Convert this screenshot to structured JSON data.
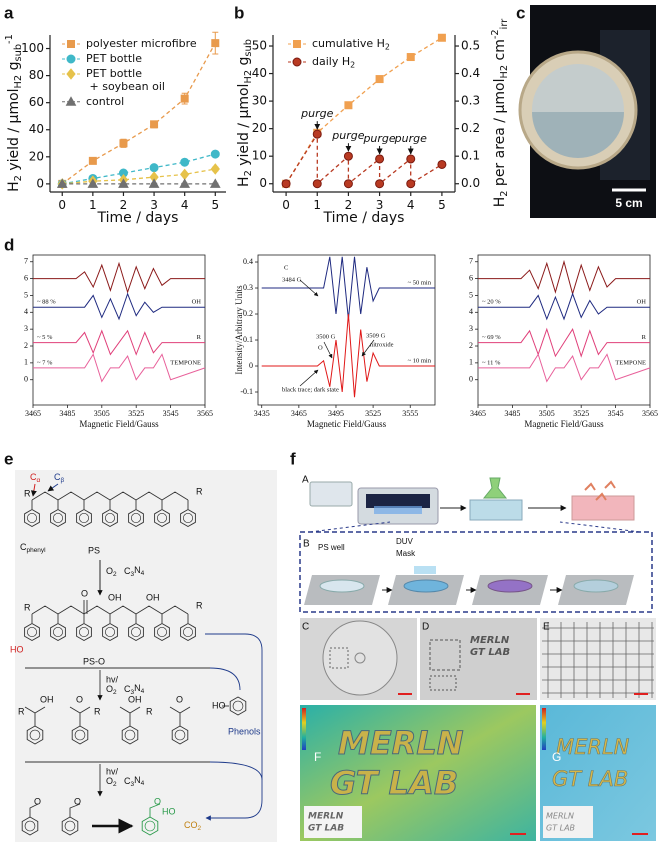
{
  "panel_labels": [
    "a",
    "b",
    "c",
    "d",
    "e",
    "f"
  ],
  "chart_data": [
    {
      "type": "line",
      "y_label": [
        "H",
        "2",
        " yield / μmol",
        "H2",
        " g",
        "sub",
        "-1"
      ],
      "x_label": "Time / days",
      "x": [
        0,
        1,
        2,
        3,
        4,
        5
      ],
      "xlim": [
        -0.4,
        5.35
      ],
      "ylim": [
        -6,
        110
      ],
      "xticks": [
        0,
        1,
        2,
        3,
        4,
        5
      ],
      "yticks": [
        0,
        20,
        40,
        60,
        80,
        100
      ],
      "legend": "upper left",
      "series": [
        {
          "name": "polyester microfibre",
          "color": "#e89a4c",
          "marker": "square",
          "line_style": "dashed",
          "values": [
            0,
            17,
            30,
            44,
            63,
            104
          ],
          "errors": [
            0,
            2,
            3,
            2.5,
            4,
            8
          ]
        },
        {
          "name": "PET bottle",
          "color": "#3fb8c8",
          "marker": "circle",
          "line_style": "dashed",
          "values": [
            0,
            4,
            8,
            12,
            16,
            22
          ],
          "errors": [
            0,
            1,
            1,
            1,
            1.5,
            1.5
          ]
        },
        {
          "name": "PET bottle + soybean oil",
          "color": "#e6c24a",
          "marker": "diamond",
          "line_style": "dashed",
          "values": [
            0,
            2,
            3,
            5,
            7,
            11
          ],
          "errors": [
            0,
            0.5,
            1,
            1,
            1,
            1.5
          ]
        },
        {
          "name": "control",
          "color": "#707070",
          "marker": "triangle",
          "line_style": "dashed",
          "values": [
            0,
            0,
            0,
            0,
            0,
            0
          ],
          "errors": [
            0,
            0.5,
            0.5,
            0.5,
            0.5,
            0.5
          ]
        }
      ]
    },
    {
      "type": "line",
      "y_label": [
        "H",
        "2",
        " yield / μmol",
        "H2",
        " g",
        "sub"
      ],
      "y2_label": [
        "H",
        "2",
        " per area / μmol",
        "H2",
        " cm",
        "-2",
        "irr"
      ],
      "x_label": "Time / days",
      "xlim": [
        -0.42,
        5.42
      ],
      "ylim": [
        -3,
        54
      ],
      "y2lim": [
        -0.03,
        0.54
      ],
      "xticks": [
        0,
        1,
        2,
        3,
        4,
        5
      ],
      "yticks": [
        0,
        10,
        20,
        30,
        40,
        50
      ],
      "y2ticks": [
        {
          "value": 0,
          "label": "0.0"
        },
        0.1,
        0.2,
        0.3,
        0.4,
        0.5
      ],
      "legend": "upper left",
      "annotations": [
        "purge",
        "purge",
        "purge",
        "purge"
      ],
      "series": [
        {
          "name": "cumulative H2",
          "color": "#f0a050",
          "marker": "square",
          "line_style": "dashed",
          "x": [
            0,
            1,
            2,
            3,
            4,
            5
          ],
          "values": [
            0,
            18.5,
            28.5,
            38,
            46,
            53
          ]
        },
        {
          "name": "daily H2",
          "color": "#b83a22",
          "marker": "circle",
          "line_style": "dashed",
          "x": [
            0,
            1,
            1,
            2,
            2,
            3,
            3,
            4,
            4,
            5
          ],
          "values": [
            0,
            18,
            0,
            10,
            0,
            9,
            0,
            9,
            0,
            7
          ]
        }
      ]
    },
    {
      "type": "line",
      "x_label": "Magnetic Field/Gauss",
      "x": [
        3465,
        3490,
        3495,
        3500,
        3505,
        3510,
        3515,
        3520,
        3525,
        3530,
        3535,
        3540,
        3545,
        3565
      ],
      "xlim": [
        3465,
        3565
      ],
      "ylim": [
        -1.5,
        7.4
      ],
      "xticks": [
        3465,
        3485,
        3505,
        3525,
        3545,
        3565
      ],
      "yticks": [
        0,
        1,
        2,
        3,
        4,
        5,
        6,
        7
      ],
      "series": [
        {
          "color": "#8b1a1a",
          "values": [
            6,
            6,
            6.4,
            5.5,
            6.8,
            5.3,
            6.9,
            5.2,
            6.7,
            5.4,
            6.6,
            5.6,
            6,
            6
          ]
        },
        {
          "name": "OH",
          "share": "~ 88 %",
          "color": "#1f2a80",
          "values": [
            4.3,
            4.3,
            4.3,
            5,
            3.7,
            4.8,
            3.6,
            5.1,
            3.8,
            4.6,
            4,
            4.3,
            4.3,
            4.3
          ]
        },
        {
          "name": "R",
          "share": "~ 5 %",
          "color": "#e0407a",
          "values": [
            2.2,
            2.2,
            2.8,
            1.6,
            2.9,
            1.5,
            2.2,
            2.9,
            1.5,
            2.8,
            1.6,
            2.2,
            2.2,
            2.2
          ]
        },
        {
          "name": "TEMPONE",
          "share": "~ 7 %",
          "color": "#e8609a",
          "values": [
            0.7,
            0.7,
            0.7,
            1.5,
            -0.1,
            0.7,
            0.7,
            1.4,
            0,
            0.7,
            0.7,
            1.5,
            0,
            0.7
          ]
        }
      ]
    },
    {
      "type": "line",
      "x_label": "Magnetic Field/Gauss",
      "y_label": "Intensity/Arbitrary Units",
      "x": [
        3435,
        3480,
        3485,
        3490,
        3495,
        3500,
        3505,
        3510,
        3515,
        3520,
        3525,
        3530,
        3540,
        3575
      ],
      "xlim": [
        3432,
        3575
      ],
      "ylim": [
        -0.15,
        0.427
      ],
      "xticks": [
        3435,
        3465,
        3495,
        3525,
        3555
      ],
      "yticks": [
        -0.1,
        0,
        0.1,
        0.2,
        0.3,
        0.4
      ],
      "annotations": [
        "C",
        "3484 G",
        "3500 G",
        "O",
        "3509 G",
        "nitroxide",
        "black trace; dark state"
      ],
      "series": [
        {
          "name": "~ 50 min",
          "color": "#1f2a80",
          "values": [
            0.3,
            0.3,
            0.3,
            0.42,
            0.2,
            0.42,
            0.18,
            0.42,
            0.2,
            0.38,
            0.25,
            0.3,
            0.3,
            0.3
          ]
        },
        {
          "name": "~ 10 min",
          "color": "#e01818",
          "values": [
            0,
            0,
            0.02,
            -0.08,
            0.1,
            -0.1,
            0.2,
            -0.12,
            0.14,
            -0.06,
            0.05,
            0,
            0,
            0
          ]
        }
      ]
    },
    {
      "type": "line",
      "x_label": "Magnetic Field/Gauss",
      "x": [
        3465,
        3490,
        3495,
        3500,
        3505,
        3510,
        3515,
        3520,
        3525,
        3530,
        3535,
        3540,
        3545,
        3565
      ],
      "xlim": [
        3465,
        3565
      ],
      "ylim": [
        -1.5,
        7.4
      ],
      "xticks": [
        3465,
        3485,
        3505,
        3525,
        3545,
        3565
      ],
      "yticks": [
        0,
        1,
        2,
        3,
        4,
        5,
        6,
        7
      ],
      "series": [
        {
          "color": "#8b1a1a",
          "values": [
            6,
            6,
            6.5,
            5.4,
            6.9,
            5.2,
            7,
            5.1,
            6.8,
            5.3,
            6.7,
            5.5,
            6,
            6
          ]
        },
        {
          "name": "OH",
          "share": "~ 20 %",
          "color": "#1f2a80",
          "values": [
            4.3,
            4.3,
            4.3,
            5,
            3.6,
            4.9,
            3.6,
            5.1,
            3.7,
            4.7,
            3.9,
            4.3,
            4.3,
            4.3
          ]
        },
        {
          "name": "R",
          "share": "~ 69 %",
          "color": "#e0407a",
          "values": [
            2.2,
            2.2,
            2.9,
            1.5,
            3,
            1.4,
            2.2,
            3,
            1.4,
            2.9,
            1.5,
            2.2,
            2.2,
            2.2
          ]
        },
        {
          "name": "TEMPONE",
          "share": "~ 11 %",
          "color": "#e8609a",
          "values": [
            0.7,
            0.7,
            0.7,
            1.5,
            -0.1,
            0.7,
            0.7,
            1.4,
            0,
            0.7,
            0.7,
            1.5,
            0,
            0.7
          ]
        }
      ]
    }
  ],
  "photo": {
    "scale_bar": "5 cm"
  },
  "scheme": {
    "c_alpha": "Cα",
    "c_beta": "Cβ",
    "c_phenyl": "Cphenyl",
    "ps": "PS",
    "step1": [
      "O2",
      "C3N4"
    ],
    "ps_o": "PS-O",
    "step2": [
      "hv/",
      "O2",
      "C3N4"
    ],
    "step3": [
      "hv/",
      "O2",
      "C3N4"
    ],
    "phenols": "Phenols",
    "co2": "CO2",
    "atoms": [
      "R",
      "R",
      "O",
      "OH",
      "OH",
      "HO",
      "R",
      "R",
      "R",
      "OH",
      "O",
      "R",
      "OH",
      "R",
      "O",
      "HO",
      "O",
      "O",
      "O",
      "HO"
    ]
  },
  "fabrication": {
    "panels": [
      "A",
      "B",
      "C",
      "D",
      "E",
      "F",
      "G"
    ],
    "ps_well": "PS well",
    "duv": "DUV",
    "mask": "Mask",
    "d_text": [
      "MERLN",
      "GT LAB"
    ],
    "f_text": [
      "MERLN",
      "GT LAB"
    ],
    "f_inset": [
      "MERLN",
      "GT LAB"
    ],
    "g_text": [
      "MERLN",
      "GT LAB"
    ],
    "g_inset": [
      "MERLN",
      "GT LAB"
    ]
  }
}
